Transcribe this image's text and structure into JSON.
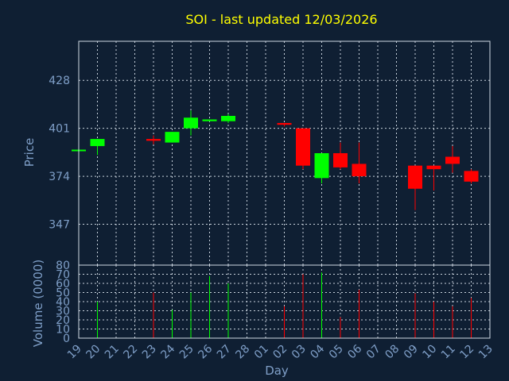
{
  "chart_data": {
    "type": "candlestick",
    "title": "SOI - last updated 12/03/2026",
    "xlabel": "Day",
    "price_panel": {
      "ylabel": "Price",
      "yticks": [
        347,
        374,
        401,
        428
      ],
      "ylim": [
        324,
        450
      ]
    },
    "volume_panel": {
      "ylabel": "Volume (0000)",
      "yticks": [
        0,
        10,
        20,
        30,
        40,
        50,
        60,
        70,
        80
      ],
      "ylim": [
        0,
        80
      ]
    },
    "x_tick_labels": [
      "19",
      "20",
      "21",
      "22",
      "23",
      "24",
      "25",
      "26",
      "27",
      "28",
      "01",
      "02",
      "03",
      "04",
      "05",
      "06",
      "07",
      "08",
      "09",
      "10",
      "11",
      "12",
      "13"
    ],
    "colors": {
      "up": "#00ff00",
      "down": "#ff0000",
      "background": "#0f1f33",
      "title": "#ffff00",
      "axis": "#7f9fc8"
    },
    "candles": [
      {
        "day": "19",
        "open": 389,
        "close": 389,
        "high": 389,
        "low": 389,
        "volume": 0
      },
      {
        "day": "20",
        "open": 391,
        "close": 395,
        "high": 395,
        "low": 386,
        "volume": 40
      },
      {
        "day": "23",
        "open": 395,
        "close": 394,
        "high": 397,
        "low": 392,
        "volume": 50
      },
      {
        "day": "24",
        "open": 393,
        "close": 399,
        "high": 399,
        "low": 393,
        "volume": 31
      },
      {
        "day": "25",
        "open": 401,
        "close": 407,
        "high": 411,
        "low": 397,
        "volume": 50
      },
      {
        "day": "26",
        "open": 405,
        "close": 406,
        "high": 406,
        "low": 405,
        "volume": 68
      },
      {
        "day": "27",
        "open": 405,
        "close": 408,
        "high": 409,
        "low": 404,
        "volume": 60
      },
      {
        "day": "02",
        "open": 404,
        "close": 403,
        "high": 404,
        "low": 402,
        "volume": 35
      },
      {
        "day": "03",
        "open": 401,
        "close": 380,
        "high": 401,
        "low": 378,
        "volume": 70
      },
      {
        "day": "04",
        "open": 373,
        "close": 387,
        "high": 387,
        "low": 370,
        "volume": 72
      },
      {
        "day": "05",
        "open": 387,
        "close": 379,
        "high": 393,
        "low": 378,
        "volume": 23
      },
      {
        "day": "06",
        "open": 381,
        "close": 374,
        "high": 393,
        "low": 370,
        "volume": 53
      },
      {
        "day": "09",
        "open": 380,
        "close": 367,
        "high": 380,
        "low": 355,
        "volume": 49
      },
      {
        "day": "10",
        "open": 380,
        "close": 378,
        "high": 380,
        "low": 366,
        "volume": 40
      },
      {
        "day": "11",
        "open": 385,
        "close": 381,
        "high": 391,
        "low": 376,
        "volume": 35
      },
      {
        "day": "12",
        "open": 377,
        "close": 371,
        "high": 378,
        "low": 370,
        "volume": 44
      }
    ]
  }
}
